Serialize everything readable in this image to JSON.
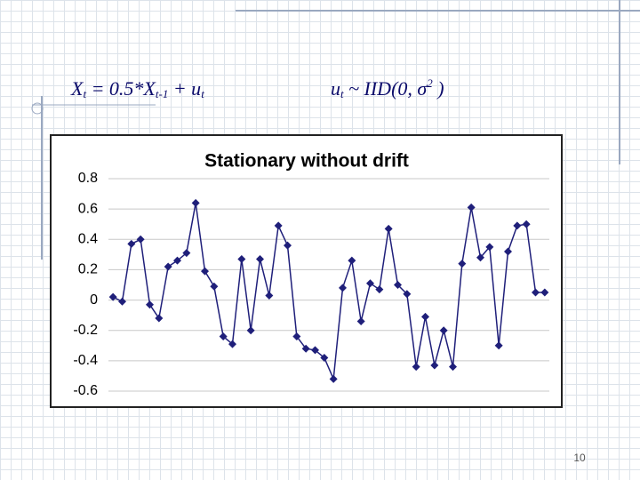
{
  "slide": {
    "formula_left": [
      "X",
      "t",
      " = 0.5*X",
      "t-1",
      " + u",
      "t"
    ],
    "formula_right": [
      "u",
      "t",
      " ~ IID(0, σ",
      "2",
      " )"
    ],
    "page_number": "10"
  },
  "chart_data": {
    "type": "line",
    "title": "Stationary without drift",
    "color": "#1f1f7a",
    "values": [
      0.02,
      -0.01,
      0.37,
      0.4,
      -0.03,
      -0.12,
      0.22,
      0.26,
      0.31,
      0.64,
      0.19,
      0.09,
      -0.24,
      -0.29,
      0.27,
      -0.2,
      0.27,
      0.03,
      0.49,
      0.36,
      -0.24,
      -0.32,
      -0.33,
      -0.38,
      -0.52,
      0.08,
      0.26,
      -0.14,
      0.11,
      0.07,
      0.47,
      0.1,
      0.04,
      -0.44,
      -0.11,
      -0.43,
      -0.2,
      -0.44,
      0.24,
      0.61,
      0.28,
      0.35,
      -0.3,
      0.32,
      0.49,
      0.5,
      0.05,
      0.05
    ],
    "ylim": [
      -0.6,
      0.8
    ],
    "yticks": [
      0.8,
      0.6,
      0.4,
      0.2,
      0,
      -0.2,
      -0.4,
      -0.6
    ],
    "grid": true
  }
}
